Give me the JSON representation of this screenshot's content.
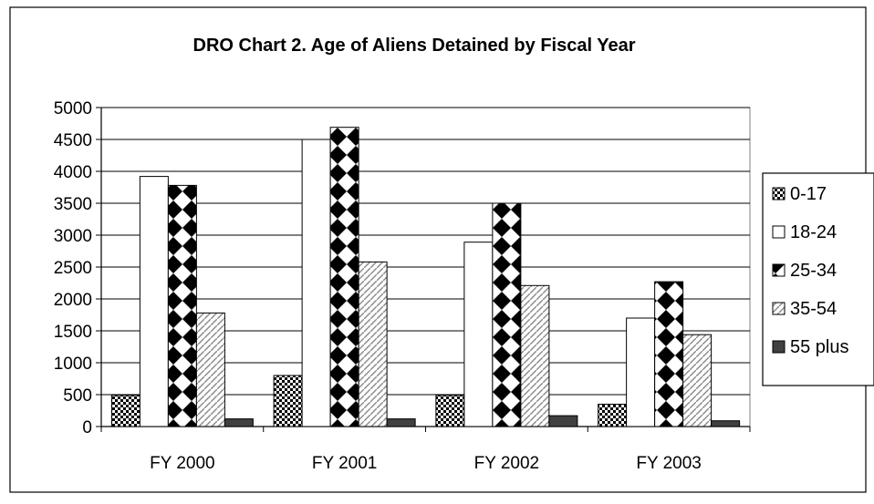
{
  "chart_data": {
    "type": "bar",
    "title": "DRO Chart 2. Age of Aliens Detained by Fiscal Year",
    "xlabel": "",
    "ylabel": "",
    "categories": [
      "FY 2000",
      "FY 2001",
      "FY 2002",
      "FY 2003"
    ],
    "ylim": [
      0,
      5000
    ],
    "yticks": [
      0,
      500,
      1000,
      1500,
      2000,
      2500,
      3000,
      3500,
      4000,
      4500,
      5000
    ],
    "grid": true,
    "legend_position": "right",
    "series": [
      {
        "name": "0-17",
        "values": [
          490,
          800,
          490,
          350
        ],
        "pattern": "dots"
      },
      {
        "name": "18-24",
        "values": [
          3920,
          4500,
          2890,
          1700
        ],
        "pattern": "white"
      },
      {
        "name": "25-34",
        "values": [
          3780,
          4690,
          3500,
          2270
        ],
        "pattern": "diamonds"
      },
      {
        "name": "35-54",
        "values": [
          1780,
          2580,
          2210,
          1440
        ],
        "pattern": "hatch"
      },
      {
        "name": "55 plus",
        "values": [
          120,
          120,
          170,
          90
        ],
        "pattern": "solid"
      }
    ]
  }
}
